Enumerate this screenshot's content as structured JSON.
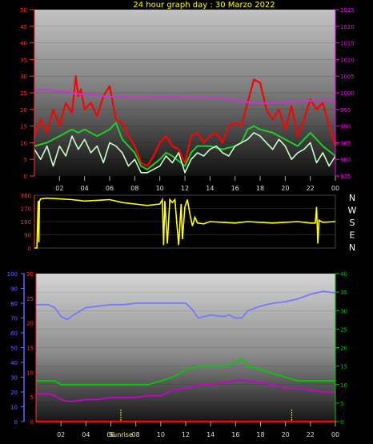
{
  "title": "24 hour graph day : 30 Marzo 2022",
  "hour_labels": [
    "02",
    "04",
    "06",
    "08",
    "10",
    "12",
    "14",
    "16",
    "18",
    "20",
    "22",
    "00"
  ],
  "sunrise_label": "Sunrise",
  "compass_labels": [
    "N",
    "W",
    "S",
    "E",
    "N"
  ],
  "colors": {
    "gust": "#ff0000",
    "wind_avg": "#22cc22",
    "wind": "#c8ffc8",
    "pressure": "#cc33cc",
    "direction": "#ffff00",
    "humidity": "#7777ff",
    "temperature": "#00cc00",
    "dewpoint": "#cc00cc",
    "rain": "#ff0000",
    "sunrise_marker": "#ffff66",
    "left_axis_text": "#ff3333",
    "right_axis_text": "#ff00ff",
    "humidity_axis_text": "#6666ff",
    "temp_axis_text": "#00cc00",
    "hour_text": "#dddddd",
    "compass_text": "#ffffff"
  },
  "chart_data": [
    {
      "type": "line",
      "title": "",
      "x_unit": "hour",
      "xlim": [
        0,
        24
      ],
      "x_ticks": [
        2,
        4,
        6,
        8,
        10,
        12,
        14,
        16,
        18,
        20,
        22,
        24
      ],
      "y_left": {
        "ticks": [
          0,
          5,
          10,
          15,
          20,
          25,
          30,
          35,
          40,
          45,
          50
        ],
        "lim": [
          0,
          50
        ]
      },
      "y_right": {
        "ticks": [
          975,
          980,
          985,
          990,
          995,
          1000,
          1005,
          1010,
          1015,
          1020,
          1025
        ],
        "lim": [
          975,
          1025
        ]
      },
      "series": [
        {
          "id": "gust",
          "axis": "left",
          "x": [
            0,
            0.5,
            1,
            1.5,
            2,
            2.5,
            3,
            3.3,
            3.5,
            3.7,
            4,
            4.5,
            5,
            5.5,
            6,
            6.5,
            7,
            7.5,
            8,
            8.5,
            9,
            9.5,
            10,
            10.5,
            11,
            11.5,
            12,
            12.5,
            13,
            13.5,
            14,
            14.5,
            15,
            15.5,
            16,
            16.5,
            17,
            17.5,
            18,
            18.5,
            19,
            19.5,
            20,
            20.5,
            21,
            21.5,
            22,
            22.5,
            23,
            23.5,
            24
          ],
          "values": [
            12,
            17,
            13,
            20,
            15,
            22,
            19,
            30,
            24,
            26,
            20,
            22,
            18,
            24,
            27,
            17,
            16,
            12,
            9,
            4,
            3,
            6,
            10,
            12,
            9,
            8,
            4,
            12,
            13,
            10,
            12,
            13,
            10,
            15,
            16,
            15,
            22,
            29,
            28,
            20,
            17,
            20,
            14,
            21,
            12,
            17,
            23,
            20,
            22,
            15,
            9
          ]
        },
        {
          "id": "wind_avg",
          "axis": "left",
          "x": [
            0,
            1,
            2,
            3,
            3.5,
            4,
            5,
            6,
            6.5,
            7,
            8,
            8.5,
            9,
            10,
            10.5,
            11,
            12,
            12.5,
            13,
            14,
            15,
            16,
            16.5,
            17,
            17.5,
            18,
            19,
            20,
            21,
            22,
            23,
            24
          ],
          "values": [
            9,
            10,
            12,
            14,
            13,
            14,
            12,
            14,
            16,
            11,
            7,
            3,
            2,
            5,
            7,
            6,
            3,
            7,
            9,
            9,
            8,
            9,
            10,
            14,
            15,
            14,
            13,
            11,
            9,
            13,
            9,
            6
          ]
        },
        {
          "id": "wind",
          "axis": "left",
          "x": [
            0,
            0.5,
            1,
            1.5,
            2,
            2.5,
            3,
            3.5,
            4,
            4.5,
            5,
            5.5,
            6,
            6.5,
            7,
            7.5,
            8,
            8.5,
            9,
            9.5,
            10,
            10.5,
            11,
            11.5,
            12,
            12.5,
            13,
            13.5,
            14,
            14.5,
            15,
            15.5,
            16,
            16.5,
            17,
            17.5,
            18,
            18.5,
            19,
            19.5,
            20,
            20.5,
            21,
            21.5,
            22,
            22.5,
            23,
            23.5,
            24
          ],
          "values": [
            8,
            5,
            9,
            3,
            9,
            6,
            12,
            8,
            11,
            7,
            9,
            4,
            10,
            9,
            7,
            3,
            5,
            1,
            1,
            2,
            3,
            6,
            4,
            7,
            1,
            5,
            7,
            6,
            8,
            9,
            7,
            6,
            9,
            10,
            11,
            13,
            12,
            10,
            8,
            11,
            9,
            5,
            7,
            8,
            10,
            4,
            7,
            3,
            6
          ]
        },
        {
          "id": "pressure",
          "axis": "right",
          "x": [
            0,
            1,
            2,
            3,
            4,
            5,
            6,
            7,
            8,
            9,
            10,
            11,
            12,
            13,
            14,
            15,
            16,
            17,
            18,
            19,
            20,
            21,
            22,
            23,
            24
          ],
          "values": [
            1000.8,
            1000.9,
            1000.5,
            999.9,
            999.5,
            999.2,
            998.9,
            998.8,
            998.6,
            998.6,
            998.7,
            998.8,
            998.6,
            998.6,
            998.6,
            998.3,
            997.8,
            997.2,
            996.9,
            996.9,
            997.2,
            997.3,
            997.6,
            997.7,
            997.7
          ]
        }
      ]
    },
    {
      "type": "line",
      "title": "",
      "xlim": [
        0,
        24
      ],
      "y_left": {
        "ticks": [
          0,
          90,
          180,
          270,
          360
        ],
        "lim": [
          0,
          360
        ]
      },
      "series": [
        {
          "id": "direction",
          "x": [
            0,
            0.2,
            0.3,
            0.35,
            0.4,
            0.5,
            1,
            2,
            3,
            4,
            5,
            6,
            7,
            8,
            9,
            10,
            10.2,
            10.3,
            10.4,
            10.6,
            10.8,
            11,
            11.2,
            11.5,
            11.7,
            11.8,
            12,
            12.2,
            12.4,
            12.6,
            12.8,
            13,
            13.5,
            14,
            15,
            16,
            17,
            18,
            19,
            20,
            21,
            22,
            22.4,
            22.5,
            22.6,
            22.7,
            23,
            24
          ],
          "values": [
            0,
            0,
            320,
            40,
            320,
            335,
            340,
            335,
            330,
            320,
            325,
            330,
            310,
            300,
            290,
            300,
            330,
            20,
            320,
            30,
            330,
            310,
            330,
            20,
            300,
            60,
            280,
            330,
            230,
            150,
            210,
            170,
            165,
            180,
            175,
            170,
            180,
            175,
            170,
            175,
            180,
            170,
            170,
            280,
            30,
            190,
            175,
            180
          ]
        }
      ]
    },
    {
      "type": "line",
      "title": "",
      "xlim": [
        0,
        24
      ],
      "y_outer_left": {
        "ticks": [
          0,
          10,
          20,
          30,
          40,
          50,
          60,
          70,
          80,
          90,
          100
        ],
        "lim": [
          0,
          100
        ]
      },
      "y_inner_left": {
        "ticks": [
          0,
          5,
          10,
          15,
          20,
          25,
          30
        ],
        "lim": [
          0,
          30
        ]
      },
      "y_right": {
        "ticks": [
          0,
          5,
          10,
          15,
          20,
          25,
          30,
          35,
          40
        ],
        "lim": [
          0,
          40
        ]
      },
      "series": [
        {
          "id": "humidity",
          "axis": "outer_left",
          "x": [
            0,
            1,
            1.5,
            2,
            2.5,
            3,
            4,
            5,
            6,
            7,
            8,
            9,
            10,
            11,
            12,
            12.5,
            13,
            14,
            15,
            15.5,
            16,
            16.5,
            17,
            18,
            19,
            20,
            21,
            22,
            23,
            24
          ],
          "values": [
            79,
            79,
            77,
            71,
            69,
            72,
            77,
            78,
            79,
            79,
            80,
            80,
            80,
            80,
            80,
            76,
            70,
            72,
            71,
            72,
            70,
            70,
            75,
            78,
            80,
            81,
            83,
            86,
            88,
            87
          ]
        },
        {
          "id": "temperature",
          "axis": "right",
          "x": [
            0,
            1,
            1.5,
            2,
            2.5,
            3,
            4,
            5,
            6,
            7,
            8,
            9,
            10,
            11,
            11.5,
            12,
            13,
            14,
            15,
            16,
            16.5,
            17,
            18,
            19,
            20,
            21,
            22,
            23,
            24
          ],
          "values": [
            11,
            11,
            11,
            10,
            10,
            10,
            10,
            10,
            10,
            10,
            10,
            10,
            11,
            12,
            13,
            14,
            15,
            15,
            15,
            16,
            17,
            15,
            14,
            13,
            12,
            11,
            11,
            11,
            11
          ]
        },
        {
          "id": "dewpoint",
          "axis": "right",
          "x": [
            0,
            1,
            1.5,
            2,
            2.5,
            3,
            4,
            5,
            6,
            7,
            8,
            9,
            10,
            11,
            12,
            13,
            14,
            15,
            16,
            16.5,
            17,
            18,
            19,
            20,
            21,
            22,
            23,
            24
          ],
          "values": [
            7.5,
            7.5,
            7,
            6,
            5.5,
            5.5,
            6,
            6,
            6.5,
            6.5,
            6.5,
            7,
            7,
            8.5,
            9,
            10,
            10,
            10.5,
            11,
            11.3,
            11,
            10.5,
            10,
            9,
            9,
            8.5,
            8,
            8
          ]
        },
        {
          "id": "rain",
          "axis": "inner_left",
          "x": [
            0,
            24
          ],
          "values": [
            0,
            0
          ]
        }
      ],
      "markers": [
        {
          "type": "sunrise",
          "x": 6.8,
          "label": "Sunrise"
        },
        {
          "type": "sunset",
          "x": 20.5
        }
      ]
    }
  ]
}
